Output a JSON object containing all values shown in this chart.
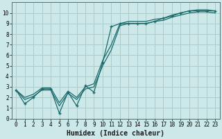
{
  "title": "",
  "xlabel": "Humidex (Indice chaleur)",
  "background_color": "#cce8e8",
  "grid_color": "#aacccc",
  "line_color": "#1a6b6b",
  "xlim": [
    -0.5,
    23.5
  ],
  "ylim": [
    0,
    11
  ],
  "xticks": [
    0,
    1,
    2,
    3,
    4,
    5,
    6,
    7,
    8,
    9,
    10,
    11,
    12,
    13,
    14,
    15,
    16,
    17,
    18,
    19,
    20,
    21,
    22,
    23
  ],
  "yticks": [
    0,
    1,
    2,
    3,
    4,
    5,
    6,
    7,
    8,
    9,
    10
  ],
  "main_line_x": [
    0,
    1,
    2,
    3,
    4,
    5,
    6,
    7,
    8,
    9,
    10,
    11,
    12,
    13,
    14,
    15,
    16,
    17,
    18,
    19,
    20,
    21,
    22,
    23
  ],
  "main_line_y": [
    2.7,
    1.4,
    2.0,
    2.8,
    2.8,
    0.5,
    2.5,
    1.2,
    3.1,
    2.5,
    5.3,
    8.7,
    9.0,
    9.0,
    9.0,
    9.0,
    9.2,
    9.5,
    9.7,
    10.0,
    10.2,
    10.2,
    10.2,
    10.2
  ],
  "upper_line_x": [
    0,
    1,
    2,
    3,
    4,
    5,
    6,
    7,
    8,
    9,
    10,
    11,
    12,
    13,
    14,
    15,
    16,
    17,
    18,
    19,
    20,
    21,
    22,
    23
  ],
  "upper_line_y": [
    2.7,
    2.0,
    2.3,
    2.9,
    2.9,
    1.5,
    2.6,
    2.0,
    3.0,
    3.3,
    5.5,
    7.0,
    9.0,
    9.2,
    9.2,
    9.2,
    9.4,
    9.5,
    9.8,
    10.0,
    10.2,
    10.3,
    10.3,
    10.2
  ],
  "lower_line_x": [
    0,
    1,
    2,
    3,
    4,
    5,
    6,
    7,
    8,
    9,
    10,
    11,
    12,
    13,
    14,
    15,
    16,
    17,
    18,
    19,
    20,
    21,
    22,
    23
  ],
  "lower_line_y": [
    2.7,
    1.8,
    2.1,
    2.7,
    2.7,
    1.2,
    2.4,
    1.8,
    2.8,
    3.0,
    5.0,
    6.5,
    8.8,
    9.0,
    9.0,
    9.0,
    9.2,
    9.3,
    9.6,
    9.8,
    10.0,
    10.1,
    10.1,
    10.0
  ]
}
